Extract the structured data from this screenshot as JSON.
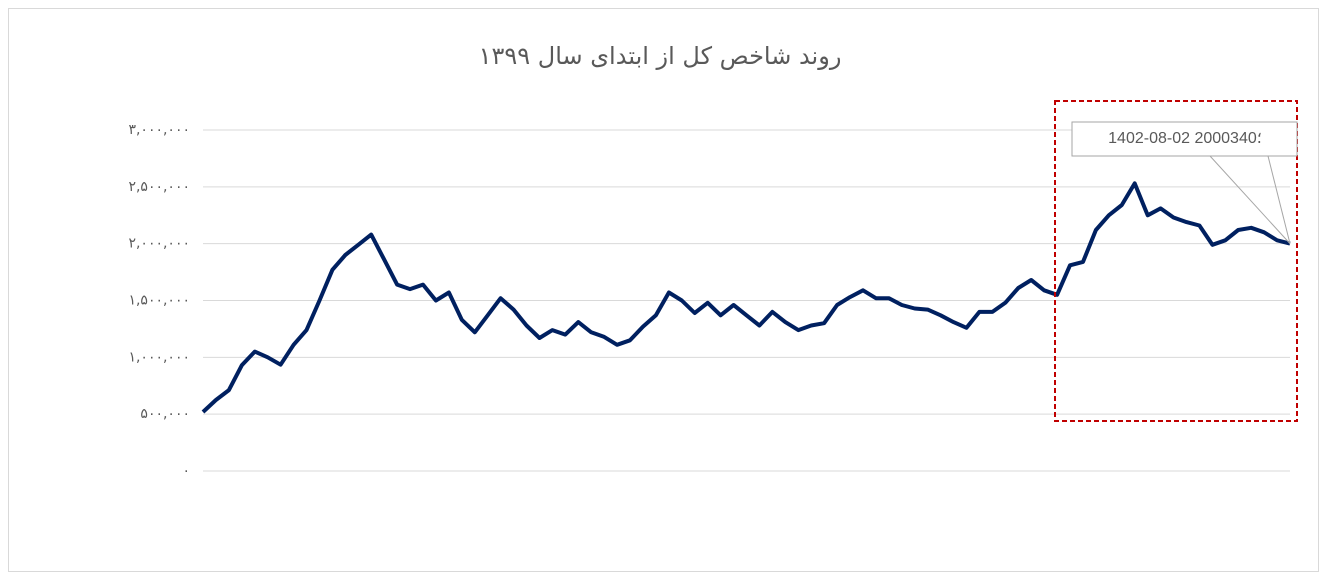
{
  "chart_data": {
    "type": "line",
    "title": "روند شاخص کل از ابتدای سال ۱۳۹۹",
    "annotation": "1402-08-02 ؛2000340",
    "series": [
      {
        "color": "#002060",
        "values": [
          519000,
          625000,
          712000,
          930000,
          1050000,
          1000000,
          935000,
          1110000,
          1240000,
          1500000,
          1770000,
          1900000,
          1990000,
          2080000,
          1860000,
          1640000,
          1600000,
          1640000,
          1500000,
          1570000,
          1330000,
          1220000,
          1370000,
          1520000,
          1420000,
          1280000,
          1170000,
          1240000,
          1200000,
          1310000,
          1220000,
          1180000,
          1110000,
          1150000,
          1270000,
          1370000,
          1570000,
          1500000,
          1390000,
          1480000,
          1370000,
          1460000,
          1370000,
          1280000,
          1400000,
          1310000,
          1240000,
          1280000,
          1300000,
          1460000,
          1530000,
          1590000,
          1520000,
          1520000,
          1460000,
          1430000,
          1420000,
          1370000,
          1310000,
          1260000,
          1400000,
          1400000,
          1480000,
          1610000,
          1680000,
          1590000,
          1550000,
          1810000,
          1840000,
          2120000,
          2250000,
          2340000,
          2530000,
          2250000,
          2310000,
          2230000,
          2190000,
          2160000,
          1990000,
          2030000,
          2120000,
          2140000,
          2100000,
          2030000,
          2000340
        ]
      }
    ],
    "ylim": [
      0,
      3000000
    ],
    "yticks": [
      {
        "value": 0,
        "label": "۰"
      },
      {
        "value": 500000,
        "label": "۵۰۰,۰۰۰"
      },
      {
        "value": 1000000,
        "label": "۱,۰۰۰,۰۰۰"
      },
      {
        "value": 1500000,
        "label": "۱,۵۰۰,۰۰۰"
      },
      {
        "value": 2000000,
        "label": "۲,۰۰۰,۰۰۰"
      },
      {
        "value": 2500000,
        "label": "۲,۵۰۰,۰۰۰"
      },
      {
        "value": 3000000,
        "label": "۳,۰۰۰,۰۰۰"
      }
    ],
    "grid": true
  }
}
